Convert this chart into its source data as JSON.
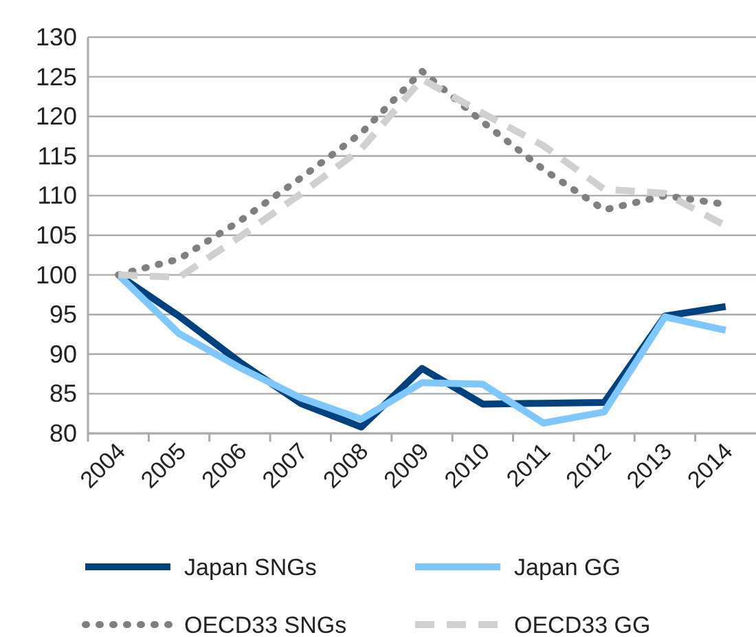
{
  "chart_data": {
    "type": "line",
    "categories": [
      "2004",
      "2005",
      "2006",
      "2007",
      "2008",
      "2009",
      "2010",
      "2011",
      "2012",
      "2013",
      "2014"
    ],
    "series": [
      {
        "name": "Japan SNGs",
        "color": "#00427f",
        "line_style": "solid",
        "values": [
          100,
          94.8,
          89,
          83.8,
          80.8,
          88.2,
          83.7,
          83.8,
          83.9,
          94.8,
          96
        ]
      },
      {
        "name": "Japan GG",
        "color": "#7fc7ff",
        "line_style": "solid",
        "values": [
          100,
          92.6,
          88.3,
          84.5,
          81.8,
          86.4,
          86.2,
          81.3,
          82.7,
          94.7,
          93
        ]
      },
      {
        "name": "OECD33 SNGs",
        "color": "#808080",
        "line_style": "dotted",
        "values": [
          100,
          102,
          106.8,
          112.2,
          117.9,
          125.7,
          119.3,
          113.3,
          108.2,
          110,
          108.9
        ]
      },
      {
        "name": "OECD33 GG",
        "color": "#d0d0d0",
        "line_style": "dashed",
        "values": [
          100,
          99.7,
          104.8,
          110.2,
          115.9,
          124.7,
          120.4,
          116.3,
          110.8,
          110.3,
          106.2
        ]
      }
    ],
    "ylim": [
      80,
      130
    ],
    "yticks": [
      80,
      85,
      90,
      95,
      100,
      105,
      110,
      115,
      120,
      125,
      130
    ],
    "grid": "y",
    "legend": "bottom",
    "marker": "none"
  }
}
